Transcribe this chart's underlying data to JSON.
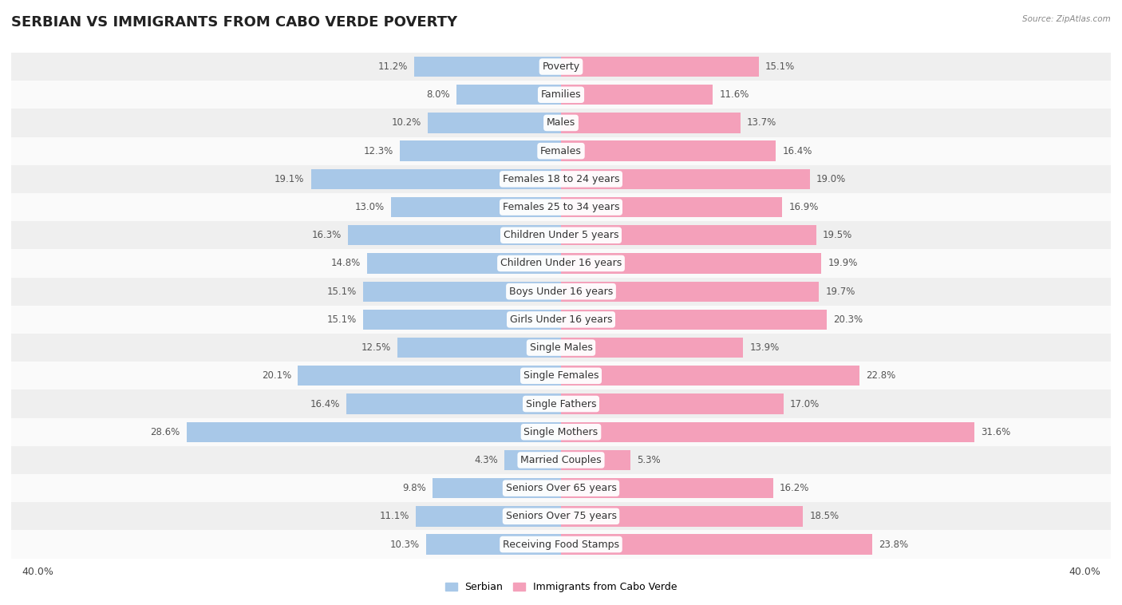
{
  "title": "SERBIAN VS IMMIGRANTS FROM CABO VERDE POVERTY",
  "source": "Source: ZipAtlas.com",
  "categories": [
    "Poverty",
    "Families",
    "Males",
    "Females",
    "Females 18 to 24 years",
    "Females 25 to 34 years",
    "Children Under 5 years",
    "Children Under 16 years",
    "Boys Under 16 years",
    "Girls Under 16 years",
    "Single Males",
    "Single Females",
    "Single Fathers",
    "Single Mothers",
    "Married Couples",
    "Seniors Over 65 years",
    "Seniors Over 75 years",
    "Receiving Food Stamps"
  ],
  "serbian": [
    11.2,
    8.0,
    10.2,
    12.3,
    19.1,
    13.0,
    16.3,
    14.8,
    15.1,
    15.1,
    12.5,
    20.1,
    16.4,
    28.6,
    4.3,
    9.8,
    11.1,
    10.3
  ],
  "cabo_verde": [
    15.1,
    11.6,
    13.7,
    16.4,
    19.0,
    16.9,
    19.5,
    19.9,
    19.7,
    20.3,
    13.9,
    22.8,
    17.0,
    31.6,
    5.3,
    16.2,
    18.5,
    23.8
  ],
  "serbian_color": "#a8c8e8",
  "cabo_verde_color": "#f4a0ba",
  "bar_height": 0.72,
  "xlim_abs": 42,
  "x_tick_val": 40,
  "x_tick_label": "40.0%",
  "legend_serbian": "Serbian",
  "legend_cabo_verde": "Immigrants from Cabo Verde",
  "row_bg_odd": "#efefef",
  "row_bg_even": "#fafafa",
  "title_fontsize": 13,
  "label_fontsize": 9,
  "value_fontsize": 8.5,
  "axis_tick_fontsize": 9
}
